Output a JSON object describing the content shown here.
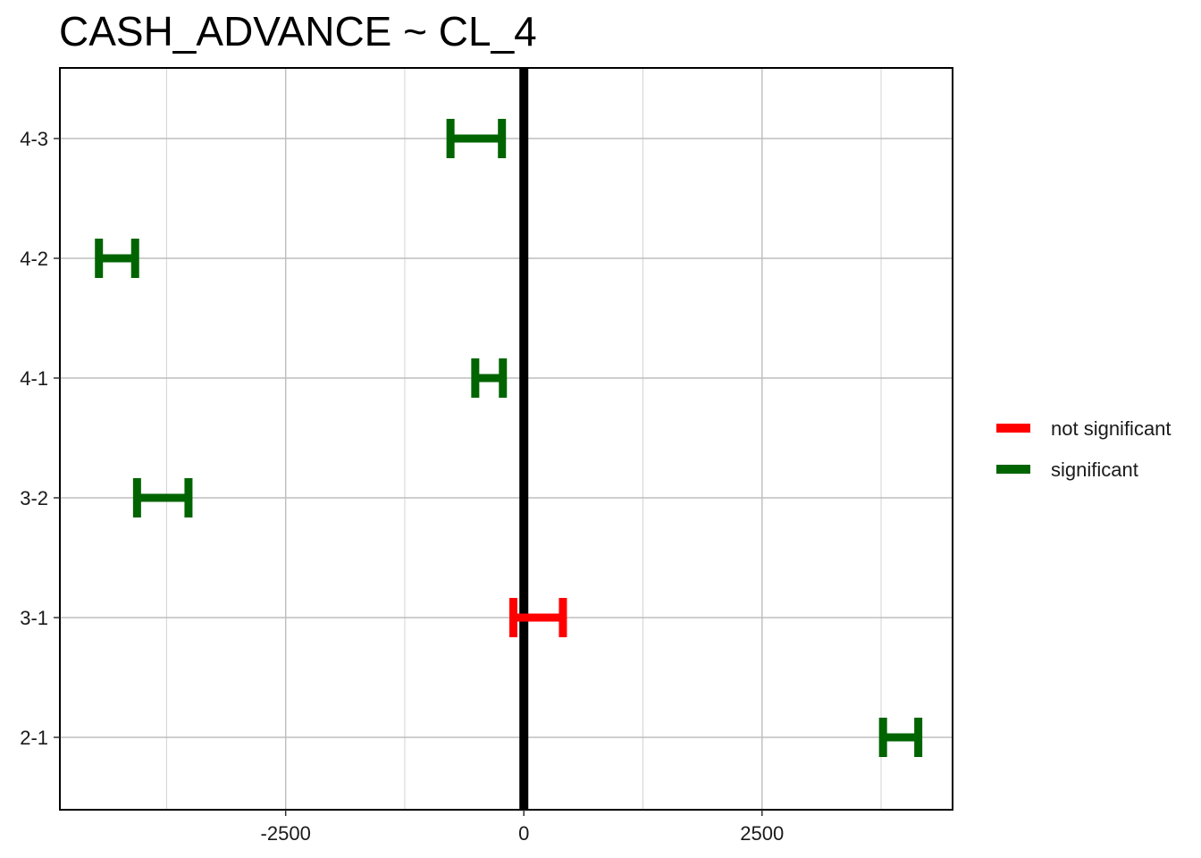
{
  "chart_data": {
    "type": "errorbar",
    "title": "CASH_ADVANCE  ~ CL_4",
    "xlabel": "",
    "ylabel": "",
    "xlim": [
      -4870,
      4500
    ],
    "x_ticks_major": [
      -2500,
      0,
      2500
    ],
    "x_tick_labels": [
      "-2500",
      "0",
      "2500"
    ],
    "reference_line_x": 0,
    "grid": true,
    "categories": [
      "4-3",
      "4-2",
      "4-1",
      "3-2",
      "3-1",
      "2-1"
    ],
    "intervals": [
      {
        "label": "4-3",
        "lower": -770,
        "upper": -230,
        "status": "significant"
      },
      {
        "label": "4-2",
        "lower": -4460,
        "upper": -4080,
        "status": "significant"
      },
      {
        "label": "4-1",
        "lower": -510,
        "upper": -220,
        "status": "significant"
      },
      {
        "label": "3-2",
        "lower": -4060,
        "upper": -3520,
        "status": "significant"
      },
      {
        "label": "3-1",
        "lower": -110,
        "upper": 410,
        "status": "not significant"
      },
      {
        "label": "2-1",
        "lower": 3770,
        "upper": 4140,
        "status": "significant"
      }
    ],
    "legend": {
      "placement": "right",
      "entries": [
        {
          "label": "not significant",
          "color": "#ff0000"
        },
        {
          "label": "significant",
          "color": "#006400"
        }
      ]
    },
    "colors": {
      "not significant": "#ff0000",
      "significant": "#006400"
    }
  }
}
